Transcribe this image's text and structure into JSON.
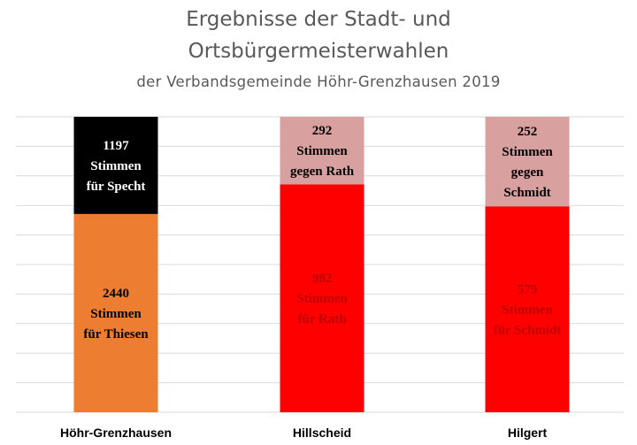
{
  "chart_data": {
    "type": "bar",
    "stacked": true,
    "title_line1": "Ergebnisse der Stadt- und",
    "title_line2": "Ortsbürgermeisterwahlen",
    "subtitle": "der Verbandsgemeinde Höhr-Grenzhausen 2019",
    "categories": [
      "Höhr-Grenzhausen",
      "Hillscheid",
      "Hilgert"
    ],
    "grid": true,
    "ylim": [
      0,
      100
    ],
    "segments": [
      {
        "category": "Höhr-Grenzhausen",
        "stack": [
          {
            "value": 2440,
            "share": 67.1,
            "lines": [
              "2440",
              "Stimmen",
              "für Thiesen"
            ],
            "color": "#ED7D31",
            "text_color": "#000000"
          },
          {
            "value": 1197,
            "share": 32.9,
            "lines": [
              "1197",
              "Stimmen",
              "für Specht"
            ],
            "color": "#000000",
            "text_color": "#FFFFFF"
          }
        ]
      },
      {
        "category": "Hillscheid",
        "stack": [
          {
            "value": 982,
            "share": 77.1,
            "lines": [
              "982",
              "Stimmen",
              "für Rath"
            ],
            "color": "#FF0000",
            "text_color": "#C00000"
          },
          {
            "value": 292,
            "share": 22.9,
            "lines": [
              "292",
              "Stimmen",
              "gegen Rath"
            ],
            "color": "#D9A0A0",
            "text_color": "#000000"
          }
        ]
      },
      {
        "category": "Hilgert",
        "stack": [
          {
            "value": 579,
            "share": 69.7,
            "lines": [
              "579",
              "Stimmen",
              "für Schmidt"
            ],
            "color": "#FF0000",
            "text_color": "#C00000"
          },
          {
            "value": 252,
            "share": 30.3,
            "lines": [
              "252",
              "Stimmen",
              "gegen",
              "Schmidt"
            ],
            "color": "#D9A0A0",
            "text_color": "#000000"
          }
        ]
      }
    ],
    "colors": {
      "grid": "#D9D9D9",
      "title": "#595959"
    }
  }
}
